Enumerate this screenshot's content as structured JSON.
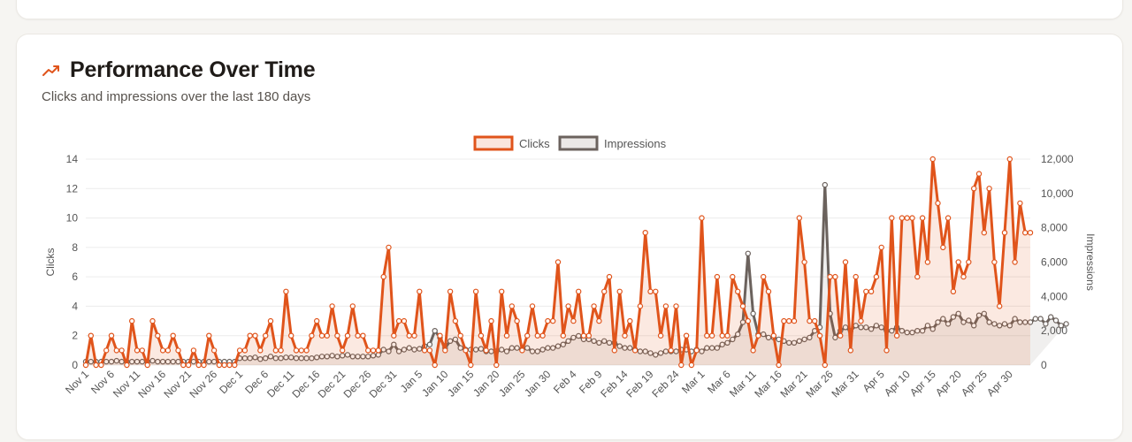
{
  "card": {
    "title": "Performance Over Time",
    "subtitle": "Clicks and impressions over the last 180 days",
    "icon": "trending-up-icon"
  },
  "colors": {
    "clicks": "#e0541b",
    "clicks_fill": "rgba(224,84,27,0.13)",
    "impressions": "#6b625d",
    "impressions_fill": "rgba(107,98,93,0.10)",
    "grid": "#ececec",
    "axis_text": "#555555"
  },
  "chart_data": {
    "type": "line",
    "legend": [
      "Clicks",
      "Impressions"
    ],
    "legend_position": "top-center",
    "grid": true,
    "xlabel": "",
    "ylabel_left": "Clicks",
    "ylabel_right": "Impressions",
    "ylim_left": [
      0,
      14
    ],
    "ylim_right": [
      0,
      12000
    ],
    "yticks_left": [
      "0",
      "2",
      "4",
      "6",
      "8",
      "10",
      "12",
      "14"
    ],
    "yticks_right": [
      "0",
      "2,000",
      "4,000",
      "6,000",
      "8,000",
      "10,000",
      "12,000"
    ],
    "x_tick_labels": [
      "Nov 1",
      "Nov 6",
      "Nov 11",
      "Nov 16",
      "Nov 21",
      "Nov 26",
      "Dec 1",
      "Dec 6",
      "Dec 11",
      "Dec 16",
      "Dec 21",
      "Dec 26",
      "Dec 31",
      "Jan 5",
      "Jan 10",
      "Jan 15",
      "Jan 20",
      "Jan 25",
      "Jan 30",
      "Feb 4",
      "Feb 9",
      "Feb 14",
      "Feb 19",
      "Feb 24",
      "Mar 1",
      "Mar 6",
      "Mar 11",
      "Mar 16",
      "Mar 21",
      "Mar 26",
      "Mar 31",
      "Apr 5",
      "Apr 10",
      "Apr 15",
      "Apr 20",
      "Apr 25",
      "Apr 30"
    ],
    "x_start": "Nov 1",
    "x_end": "Apr 30",
    "series": [
      {
        "name": "Clicks",
        "axis": "left",
        "values": [
          0,
          2,
          0,
          0,
          1,
          2,
          1,
          1,
          0,
          3,
          1,
          1,
          0,
          3,
          2,
          1,
          1,
          2,
          1,
          0,
          0,
          1,
          0,
          0,
          2,
          1,
          0,
          0,
          0,
          0,
          1,
          1,
          2,
          2,
          1,
          2,
          3,
          1,
          1,
          5,
          2,
          1,
          1,
          1,
          2,
          3,
          2,
          2,
          4,
          2,
          1,
          2,
          4,
          2,
          2,
          1,
          1,
          1,
          6,
          8,
          2,
          3,
          3,
          2,
          2,
          5,
          1,
          1,
          0,
          2,
          1,
          5,
          3,
          2,
          1,
          0,
          5,
          2,
          1,
          3,
          0,
          5,
          2,
          4,
          3,
          1,
          2,
          4,
          2,
          2,
          3,
          3,
          7,
          2,
          4,
          3,
          5,
          2,
          2,
          4,
          3,
          5,
          6,
          1,
          5,
          2,
          3,
          1,
          4,
          9,
          5,
          5,
          2,
          4,
          1,
          4,
          0,
          2,
          0,
          1,
          10,
          2,
          2,
          6,
          2,
          2,
          6,
          5,
          4,
          3,
          1,
          2,
          6,
          5,
          2,
          0,
          3,
          3,
          3,
          10,
          7,
          3,
          3,
          2,
          0,
          6,
          6,
          2,
          7,
          1,
          6,
          3,
          5,
          5,
          6,
          8,
          1,
          10,
          2,
          10,
          10,
          10,
          6,
          10,
          7,
          14,
          11,
          8,
          10,
          5,
          7,
          6,
          7,
          12,
          13,
          9,
          12,
          7,
          4,
          9,
          14,
          7,
          11,
          9,
          9
        ]
      },
      {
        "name": "Impressions",
        "axis": "right",
        "values": [
          200,
          200,
          200,
          200,
          200,
          200,
          250,
          200,
          200,
          200,
          200,
          200,
          200,
          250,
          200,
          200,
          200,
          200,
          200,
          200,
          200,
          200,
          200,
          200,
          200,
          200,
          200,
          200,
          200,
          200,
          400,
          400,
          400,
          450,
          350,
          400,
          500,
          400,
          400,
          450,
          450,
          400,
          400,
          400,
          400,
          450,
          500,
          500,
          550,
          500,
          550,
          600,
          500,
          500,
          500,
          500,
          550,
          600,
          900,
          800,
          1200,
          800,
          900,
          1000,
          900,
          950,
          1100,
          1200,
          2000,
          1600,
          1000,
          1400,
          1500,
          1000,
          900,
          900,
          900,
          950,
          800,
          800,
          800,
          900,
          800,
          1000,
          1000,
          900,
          1000,
          800,
          800,
          900,
          1000,
          1000,
          1100,
          1200,
          1400,
          1600,
          1700,
          1500,
          1500,
          1400,
          1300,
          1400,
          1300,
          1300,
          1100,
          1000,
          1000,
          900,
          800,
          800,
          700,
          600,
          700,
          800,
          800,
          800,
          900,
          900,
          800,
          900,
          800,
          1000,
          1000,
          1000,
          1200,
          1300,
          1500,
          1800,
          2500,
          6500,
          3000,
          1800,
          1800,
          1600,
          1600,
          1500,
          1400,
          1300,
          1300,
          1400,
          1500,
          1600,
          2000,
          2200,
          10500,
          3000,
          1600,
          2000,
          2200,
          2000,
          2300,
          2200,
          2200,
          2100,
          2300,
          2200,
          2000,
          2000,
          2200,
          2000,
          1900,
          1900,
          2000,
          2000,
          2300,
          2100,
          2500,
          2700,
          2400,
          2800,
          3000,
          2500,
          2600,
          2300,
          2900,
          3000,
          2500,
          2400,
          2300,
          2400,
          2300,
          2700,
          2500,
          2500,
          2500,
          2700,
          2700,
          2400,
          2800,
          2600,
          2300,
          2400
        ]
      }
    ]
  }
}
